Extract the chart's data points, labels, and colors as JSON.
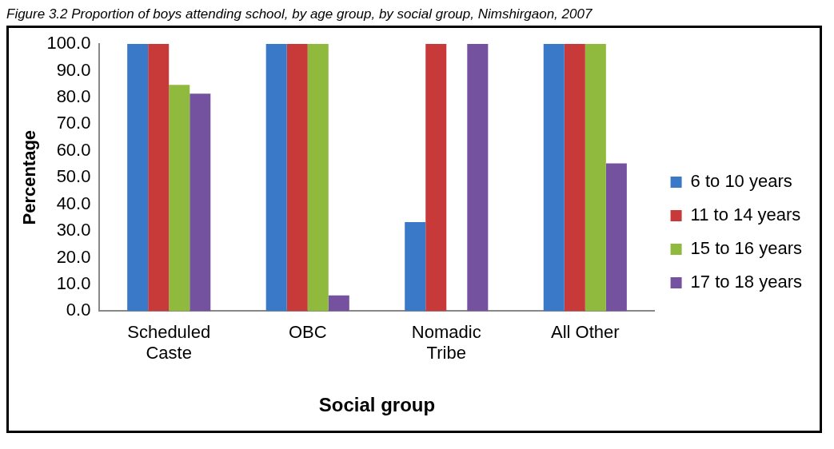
{
  "chart_data": {
    "type": "bar",
    "title": "Figure 3.2 Proportion of boys attending school, by age group, by social group, Nimshirgaon, 2007",
    "xlabel": "Social group",
    "ylabel": "Percentage",
    "categories": [
      "Scheduled\nCaste",
      "OBC",
      "Nomadic\nTribe",
      "All Other"
    ],
    "series": [
      {
        "name": "6 to 10 years",
        "color": "#3a78c8",
        "values": [
          100,
          100,
          33.3,
          100
        ]
      },
      {
        "name": "11 to 14 years",
        "color": "#c8393a",
        "values": [
          100,
          100,
          100,
          100
        ]
      },
      {
        "name": "15 to 16 years",
        "color": "#8fba3e",
        "values": [
          84.7,
          100,
          0,
          100
        ]
      },
      {
        "name": "17 to 18 years",
        "color": "#7552a0",
        "values": [
          81.4,
          5.9,
          100,
          55.3
        ]
      }
    ],
    "ylim": [
      0,
      100
    ],
    "yticks": [
      {
        "value": 0,
        "label": "0.0"
      },
      {
        "value": 10,
        "label": "10.0"
      },
      {
        "value": 20,
        "label": "20.0"
      },
      {
        "value": 30,
        "label": "30.0"
      },
      {
        "value": 40,
        "label": "40.0"
      },
      {
        "value": 50,
        "label": "50.0"
      },
      {
        "value": 60,
        "label": "60.0"
      },
      {
        "value": 70,
        "label": "70.0"
      },
      {
        "value": 80,
        "label": "80.0"
      },
      {
        "value": 90,
        "label": "90.0"
      },
      {
        "value": 100,
        "label": "100.0"
      }
    ],
    "grid": false,
    "legend": "right"
  }
}
